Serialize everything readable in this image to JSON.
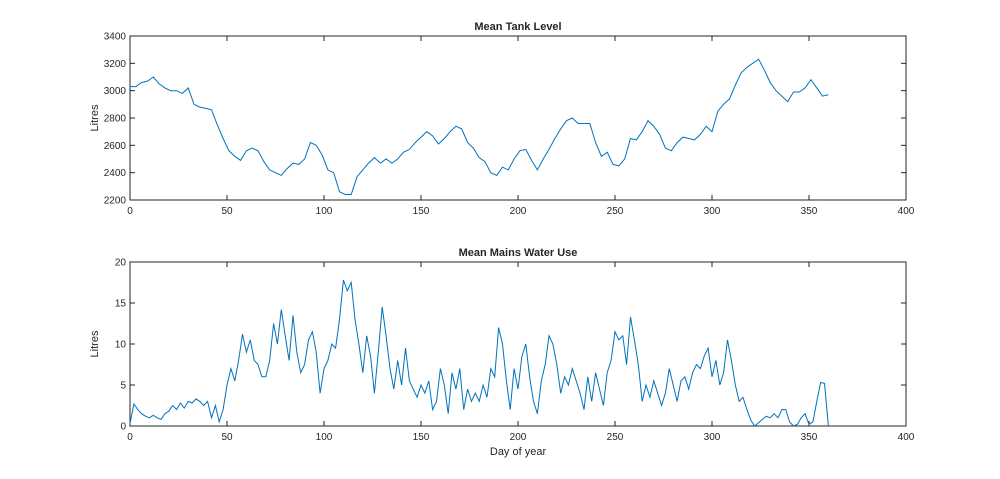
{
  "chart_data": [
    {
      "type": "line",
      "title": "Mean Tank Level",
      "xlabel": "",
      "ylabel": "Litres",
      "xlim": [
        0,
        400
      ],
      "ylim": [
        2200,
        3400
      ],
      "xticks": [
        "0",
        "50",
        "100",
        "150",
        "200",
        "250",
        "300",
        "350",
        "400"
      ],
      "yticks": [
        "2200",
        "2400",
        "2600",
        "2800",
        "3000",
        "3200",
        "3400"
      ],
      "grid": false,
      "color": "#0072BD",
      "series": [
        {
          "x": [
            0,
            3,
            6,
            9,
            12,
            15,
            18,
            21,
            24,
            27,
            30,
            33,
            36,
            39,
            42,
            45,
            48,
            51,
            54,
            57,
            60,
            63,
            66,
            69,
            72,
            75,
            78,
            81,
            84,
            87,
            90,
            93,
            96,
            99,
            102,
            105,
            108,
            111,
            114,
            117,
            120,
            123,
            126,
            129,
            132,
            135,
            138,
            141,
            144,
            147,
            150,
            153,
            156,
            159,
            162,
            165,
            168,
            171,
            174,
            177,
            180,
            183,
            186,
            189,
            192,
            195,
            198,
            201,
            204,
            207,
            210,
            213,
            216,
            219,
            222,
            225,
            228,
            231,
            234,
            237,
            240,
            243,
            246,
            249,
            252,
            255,
            258,
            261,
            264,
            267,
            270,
            273,
            276,
            279,
            282,
            285,
            288,
            291,
            294,
            297,
            300,
            303,
            306,
            309,
            312,
            315,
            318,
            321,
            324,
            327,
            330,
            333,
            336,
            339,
            342,
            345,
            348,
            351,
            354,
            357,
            360
          ],
          "values": [
            3030,
            3030,
            3060,
            3070,
            3100,
            3050,
            3020,
            3000,
            3000,
            2980,
            3020,
            2900,
            2880,
            2870,
            2860,
            2750,
            2650,
            2560,
            2520,
            2490,
            2560,
            2580,
            2560,
            2480,
            2420,
            2400,
            2380,
            2430,
            2470,
            2460,
            2500,
            2620,
            2600,
            2530,
            2420,
            2400,
            2260,
            2240,
            2240,
            2370,
            2420,
            2470,
            2510,
            2470,
            2500,
            2470,
            2500,
            2550,
            2570,
            2620,
            2660,
            2700,
            2670,
            2610,
            2650,
            2700,
            2740,
            2720,
            2620,
            2580,
            2510,
            2480,
            2400,
            2380,
            2440,
            2420,
            2500,
            2560,
            2570,
            2490,
            2420,
            2500,
            2570,
            2650,
            2720,
            2780,
            2800,
            2760,
            2760,
            2760,
            2620,
            2520,
            2550,
            2460,
            2450,
            2500,
            2650,
            2640,
            2700,
            2780,
            2740,
            2680,
            2580,
            2560,
            2620,
            2660,
            2650,
            2640,
            2680,
            2740,
            2700,
            2850,
            2900,
            2940,
            3040,
            3130,
            3170,
            3200,
            3230,
            3150,
            3060,
            3000,
            2960,
            2920,
            2990,
            2990,
            3020,
            3080,
            3020,
            2960,
            2970
          ]
        }
      ]
    },
    {
      "type": "line",
      "title": "Mean Mains Water Use",
      "xlabel": "Day of year",
      "ylabel": "Litres",
      "xlim": [
        0,
        400
      ],
      "ylim": [
        0,
        20
      ],
      "xticks": [
        "0",
        "50",
        "100",
        "150",
        "200",
        "250",
        "300",
        "350",
        "400"
      ],
      "yticks": [
        "0",
        "5",
        "10",
        "15",
        "20"
      ],
      "grid": false,
      "color": "#0072BD",
      "series": [
        {
          "x": [
            0,
            2,
            4,
            6,
            8,
            10,
            12,
            14,
            16,
            18,
            20,
            22,
            24,
            26,
            28,
            30,
            32,
            34,
            36,
            38,
            40,
            42,
            44,
            46,
            48,
            50,
            52,
            54,
            56,
            58,
            60,
            62,
            64,
            66,
            68,
            70,
            72,
            74,
            76,
            78,
            80,
            82,
            84,
            86,
            88,
            90,
            92,
            94,
            96,
            98,
            100,
            102,
            104,
            106,
            108,
            110,
            112,
            114,
            116,
            118,
            120,
            122,
            124,
            126,
            128,
            130,
            132,
            134,
            136,
            138,
            140,
            142,
            144,
            146,
            148,
            150,
            152,
            154,
            156,
            158,
            160,
            162,
            164,
            166,
            168,
            170,
            172,
            174,
            176,
            178,
            180,
            182,
            184,
            186,
            188,
            190,
            192,
            194,
            196,
            198,
            200,
            202,
            204,
            206,
            208,
            210,
            212,
            214,
            216,
            218,
            220,
            222,
            224,
            226,
            228,
            230,
            232,
            234,
            236,
            238,
            240,
            242,
            244,
            246,
            248,
            250,
            252,
            254,
            256,
            258,
            260,
            262,
            264,
            266,
            268,
            270,
            272,
            274,
            276,
            278,
            280,
            282,
            284,
            286,
            288,
            290,
            292,
            294,
            296,
            298,
            300,
            302,
            304,
            306,
            308,
            310,
            312,
            314,
            316,
            318,
            320,
            322,
            324,
            326,
            328,
            330,
            332,
            334,
            336,
            338,
            340,
            342,
            344,
            346,
            348,
            350,
            352,
            354,
            356,
            358,
            360
          ],
          "values": [
            0.3,
            2.7,
            2.0,
            1.5,
            1.2,
            1.0,
            1.3,
            1.0,
            0.8,
            1.5,
            1.8,
            2.5,
            2.0,
            2.8,
            2.2,
            3.0,
            2.8,
            3.3,
            3.0,
            2.5,
            3.0,
            1.0,
            2.5,
            0.5,
            2.0,
            5.0,
            7.0,
            5.5,
            8.0,
            11.2,
            9.0,
            10.5,
            8.0,
            7.5,
            6.0,
            6.0,
            8.0,
            12.5,
            10.0,
            14.2,
            11.0,
            8.0,
            13.5,
            9.0,
            6.5,
            7.5,
            10.5,
            11.5,
            9.0,
            4.0,
            7.0,
            8.0,
            10.0,
            9.5,
            13.0,
            17.8,
            16.5,
            17.5,
            13.0,
            10.0,
            6.5,
            11.0,
            8.5,
            4.0,
            9.0,
            14.5,
            11.0,
            7.0,
            4.5,
            8.0,
            5.0,
            9.5,
            5.5,
            4.5,
            3.5,
            5.0,
            4.0,
            5.5,
            2.0,
            3.0,
            7.0,
            5.0,
            1.5,
            6.5,
            4.5,
            7.0,
            2.0,
            4.5,
            3.0,
            4.0,
            3.0,
            5.0,
            3.5,
            7.0,
            6.0,
            12.0,
            10.0,
            5.5,
            2.0,
            7.0,
            4.5,
            8.5,
            10.0,
            6.0,
            3.0,
            1.5,
            5.5,
            7.5,
            11.0,
            10.0,
            7.5,
            4.0,
            6.0,
            5.0,
            7.0,
            5.5,
            4.0,
            2.0,
            6.0,
            3.0,
            6.5,
            4.5,
            2.5,
            6.5,
            8.0,
            11.5,
            10.5,
            11.0,
            7.5,
            13.3,
            10.5,
            7.5,
            3.0,
            5.0,
            3.5,
            5.5,
            4.0,
            2.5,
            4.0,
            7.0,
            5.0,
            3.0,
            5.5,
            6.0,
            4.5,
            6.5,
            7.5,
            7.0,
            8.5,
            9.5,
            6.0,
            8.0,
            5.0,
            6.5,
            10.5,
            8.0,
            5.0,
            3.0,
            3.5,
            2.0,
            0.7,
            0.0,
            0.4,
            0.8,
            1.2,
            1.0,
            1.5,
            1.0,
            2.0,
            2.0,
            0.5,
            0.0,
            0.2,
            1.0,
            1.5,
            0.2,
            0.5,
            3.0,
            5.3,
            5.2,
            0.0
          ]
        }
      ]
    }
  ]
}
